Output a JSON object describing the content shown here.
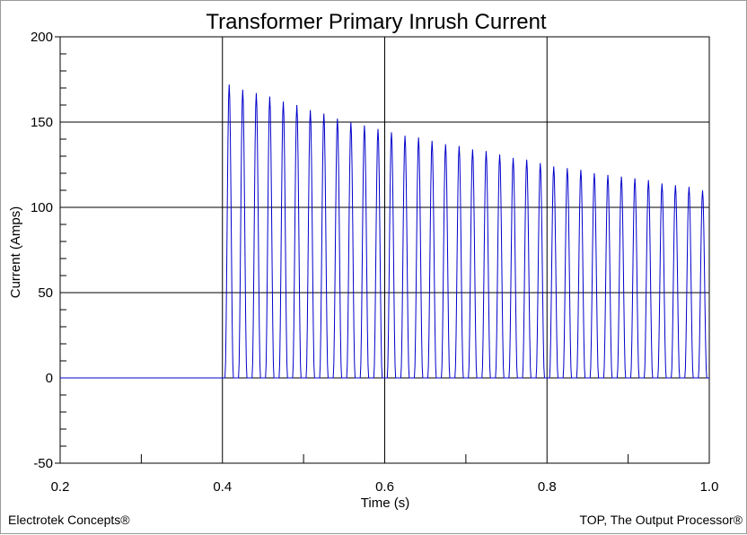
{
  "chart_data": {
    "type": "line",
    "title": "Transformer Primary Inrush Current",
    "xlabel": "Time (s)",
    "ylabel": "Current (Amps)",
    "xlim": [
      0.2,
      1.0
    ],
    "ylim": [
      -50,
      200
    ],
    "xticks": [
      "0.2",
      "0.4",
      "0.6",
      "0.8",
      "1.0"
    ],
    "yticks": [
      "-50",
      "0",
      "50",
      "100",
      "150",
      "200"
    ],
    "grid": true,
    "series": [
      {
        "color": "#0000cc",
        "energize_time": 0.4,
        "cycle_period": 0.016667,
        "peak_times": [
          0.4083,
          0.425,
          0.4417,
          0.4583,
          0.475,
          0.4917,
          0.5083,
          0.525,
          0.5417,
          0.5583,
          0.575,
          0.5917,
          0.6083,
          0.625,
          0.6417,
          0.6583,
          0.675,
          0.6917,
          0.7083,
          0.725,
          0.7417,
          0.7583,
          0.775,
          0.7917,
          0.8083,
          0.825,
          0.8417,
          0.8583,
          0.875,
          0.8917,
          0.9083,
          0.925,
          0.9417,
          0.9583,
          0.975,
          0.9917
        ],
        "peak_values": [
          172,
          169,
          167,
          165,
          162,
          160,
          157,
          155,
          152,
          150,
          148,
          146,
          144,
          142,
          141,
          139,
          137,
          136,
          134,
          133,
          131,
          129,
          128,
          126,
          124,
          123,
          122,
          120,
          119,
          118,
          117,
          116,
          114,
          113,
          112,
          110
        ],
        "baseline": 0
      }
    ]
  },
  "footer": {
    "left": "Electrotek Concepts®",
    "right": "TOP, The Output Processor®"
  }
}
